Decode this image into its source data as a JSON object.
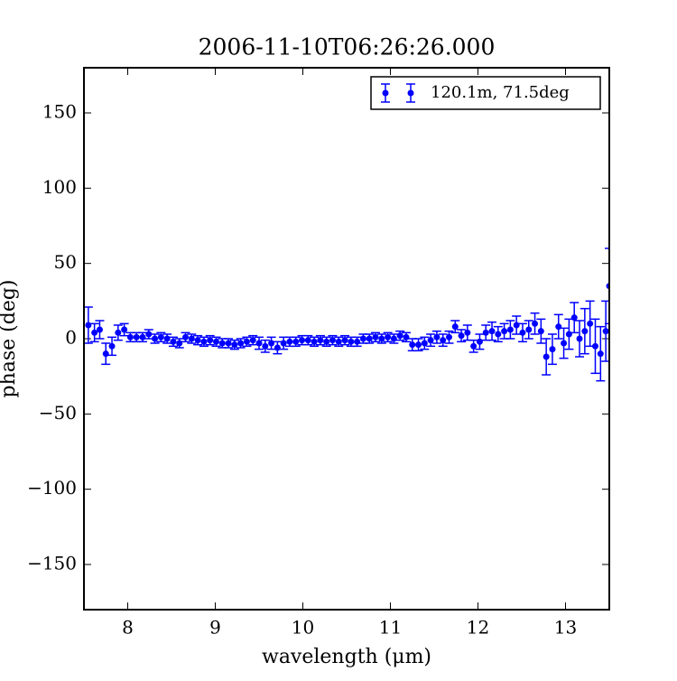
{
  "chart_data": {
    "type": "errorbar",
    "title": "2006-11-10T06:26:26.000",
    "xlabel": "wavelength (μm)",
    "ylabel": "phase (deg)",
    "xlim": [
      7.5,
      13.5
    ],
    "ylim": [
      -180,
      180
    ],
    "xticks": [
      8,
      9,
      10,
      11,
      12,
      13
    ],
    "yticks": [
      {
        "value": -150,
        "label": "−150"
      },
      {
        "value": -100,
        "label": "−100"
      },
      {
        "value": -50,
        "label": "−50"
      },
      0,
      50,
      100,
      150
    ],
    "legend": "upper right",
    "series": [
      {
        "name": "120.1m, 71.5deg",
        "color": "#0000ff",
        "x": [
          7.55,
          7.62,
          7.68,
          7.75,
          7.82,
          7.89,
          7.96,
          8.03,
          8.1,
          8.17,
          8.24,
          8.31,
          8.38,
          8.45,
          8.52,
          8.59,
          8.66,
          8.73,
          8.8,
          8.87,
          8.94,
          9.01,
          9.08,
          9.15,
          9.22,
          9.29,
          9.36,
          9.43,
          9.5,
          9.57,
          9.64,
          9.71,
          9.78,
          9.85,
          9.92,
          9.99,
          10.06,
          10.13,
          10.2,
          10.27,
          10.34,
          10.41,
          10.48,
          10.55,
          10.62,
          10.69,
          10.76,
          10.83,
          10.9,
          10.97,
          11.04,
          11.11,
          11.18,
          11.25,
          11.32,
          11.39,
          11.46,
          11.53,
          11.6,
          11.67,
          11.74,
          11.81,
          11.88,
          11.95,
          12.02,
          12.09,
          12.16,
          12.23,
          12.3,
          12.37,
          12.44,
          12.51,
          12.58,
          12.65,
          12.72,
          12.78,
          12.85,
          12.92,
          12.98,
          13.04,
          13.1,
          13.16,
          13.22,
          13.28,
          13.34,
          13.4,
          13.46,
          13.5
        ],
        "values": [
          9,
          4,
          6,
          -10,
          -5,
          4,
          6,
          1,
          1,
          1,
          3,
          0,
          1,
          0,
          -2,
          -3,
          1,
          0,
          -1,
          -2,
          -1,
          -2,
          -3,
          -3,
          -4,
          -3,
          -2,
          -1,
          -3,
          -5,
          -3,
          -6,
          -3,
          -2,
          -2,
          -1,
          -1,
          -2,
          -1,
          -2,
          -1,
          -2,
          -1,
          -2,
          -2,
          0,
          0,
          1,
          0,
          1,
          0,
          2,
          1,
          -4,
          -4,
          -3,
          -1,
          1,
          -1,
          1,
          8,
          2,
          4,
          -5,
          -2,
          4,
          5,
          3,
          5,
          6,
          9,
          4,
          6,
          10,
          5,
          -12,
          -7,
          8,
          -3,
          3,
          14,
          0,
          5,
          10,
          -5,
          -10,
          5,
          35
        ],
        "errors": [
          12,
          6,
          6,
          7,
          6,
          5,
          4,
          3,
          3,
          3,
          3,
          3,
          3,
          3,
          3,
          3,
          3,
          3,
          3,
          3,
          3,
          3,
          3,
          3,
          3,
          3,
          3,
          3,
          4,
          4,
          4,
          4,
          4,
          3,
          3,
          3,
          3,
          3,
          3,
          3,
          3,
          3,
          3,
          3,
          3,
          3,
          3,
          3,
          3,
          3,
          3,
          3,
          3,
          4,
          4,
          4,
          4,
          4,
          4,
          4,
          4,
          4,
          5,
          4,
          5,
          5,
          6,
          5,
          5,
          6,
          6,
          6,
          6,
          7,
          8,
          12,
          10,
          8,
          10,
          10,
          10,
          12,
          15,
          15,
          18,
          18,
          20,
          25
        ]
      }
    ]
  }
}
